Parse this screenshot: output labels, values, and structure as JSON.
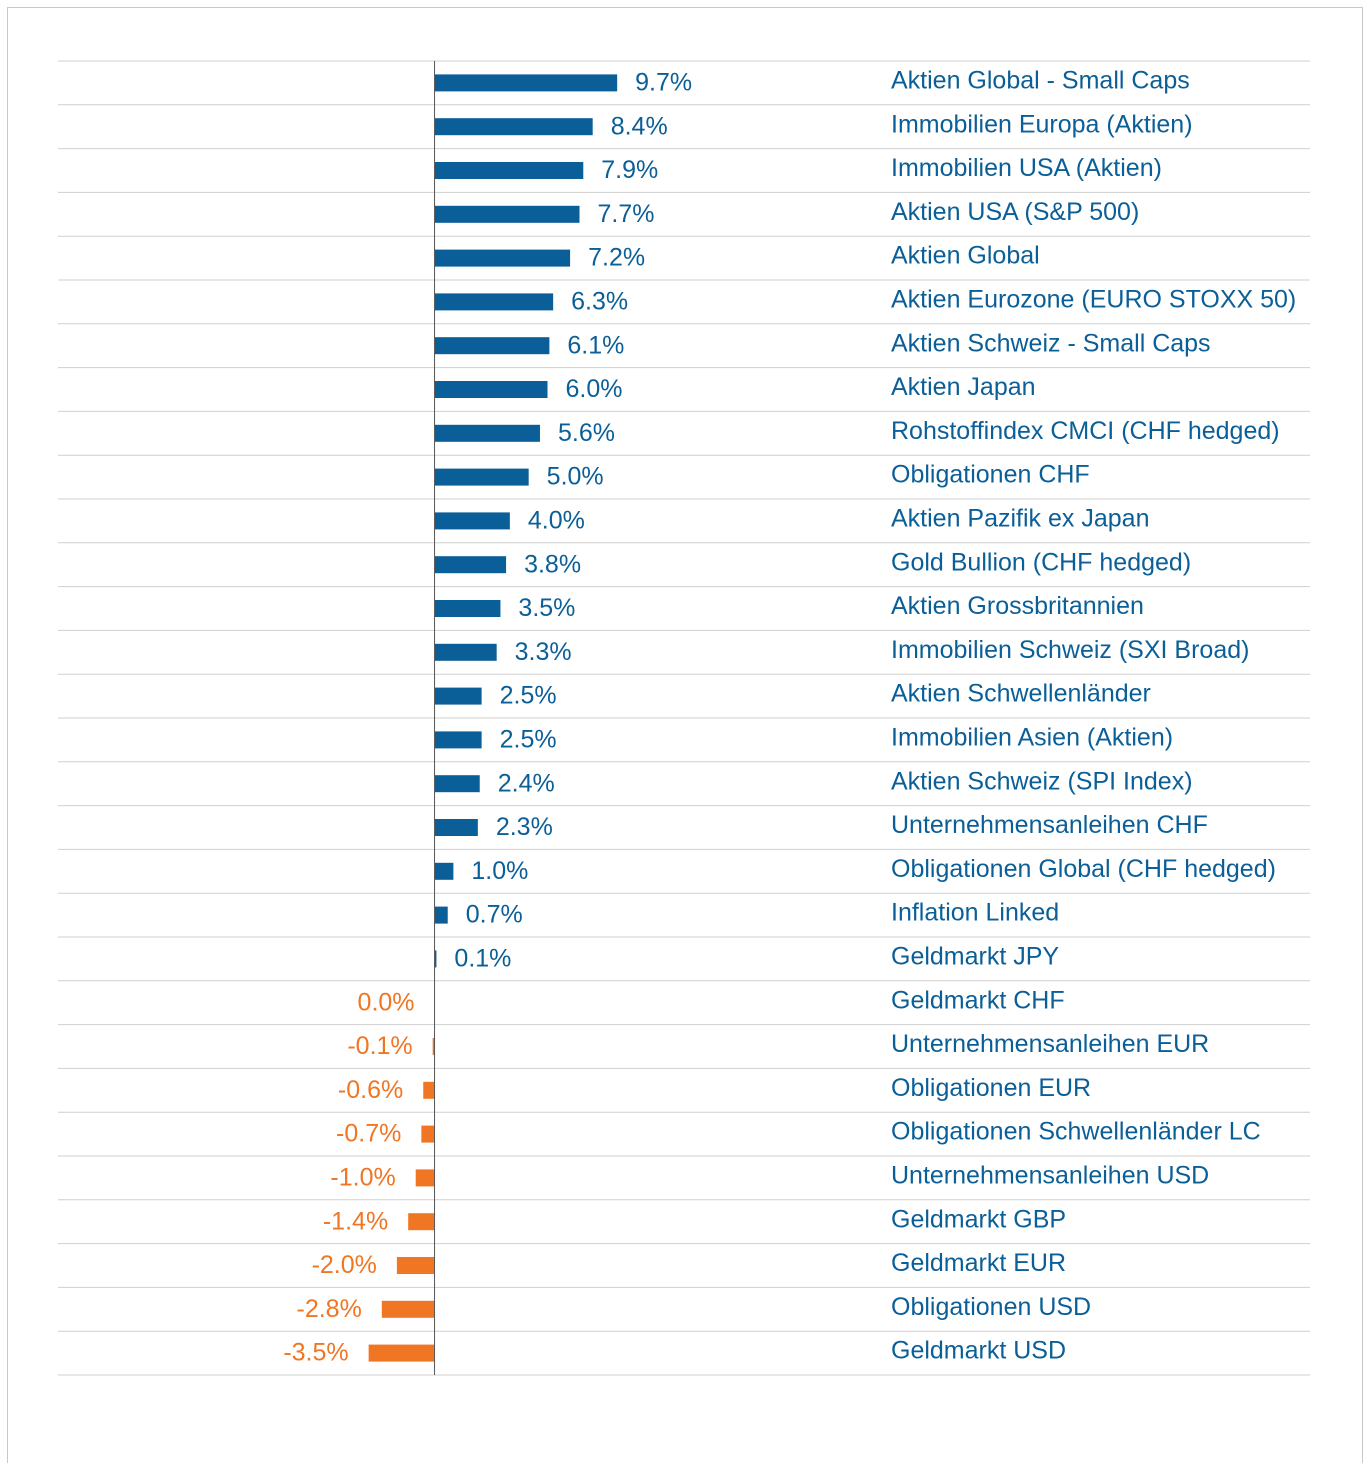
{
  "chart_data": {
    "type": "bar",
    "orientation": "horizontal",
    "categories": [
      "Aktien Global - Small Caps",
      "Immobilien Europa (Aktien)",
      "Immobilien USA (Aktien)",
      "Aktien USA (S&P 500)",
      "Aktien Global",
      "Aktien Eurozone (EURO STOXX 50)",
      "Aktien Schweiz - Small Caps",
      "Aktien Japan",
      "Rohstoffindex CMCI (CHF hedged)",
      "Obligationen CHF",
      "Aktien Pazifik ex Japan",
      "Gold Bullion (CHF hedged)",
      "Aktien Grossbritannien",
      "Immobilien Schweiz (SXI Broad)",
      "Aktien Schwellenländer",
      "Immobilien Asien (Aktien)",
      "Aktien Schweiz (SPI Index)",
      "Unternehmensanleihen CHF",
      "Obligationen Global (CHF hedged)",
      "Inflation Linked",
      "Geldmarkt JPY",
      "Geldmarkt CHF",
      "Unternehmensanleihen EUR",
      "Obligationen EUR",
      "Obligationen Schwellenländer LC",
      "Unternehmensanleihen USD",
      "Geldmarkt GBP",
      "Geldmarkt EUR",
      "Obligationen USD",
      "Geldmarkt USD"
    ],
    "values": [
      9.7,
      8.4,
      7.9,
      7.7,
      7.2,
      6.3,
      6.1,
      6.0,
      5.6,
      5.0,
      4.0,
      3.8,
      3.5,
      3.3,
      2.5,
      2.5,
      2.4,
      2.3,
      1.0,
      0.7,
      0.1,
      0.0,
      -0.1,
      -0.6,
      -0.7,
      -1.0,
      -1.4,
      -2.0,
      -2.8,
      -3.5
    ],
    "value_labels": [
      "9.7%",
      "8.4%",
      "7.9%",
      "7.7%",
      "7.2%",
      "6.3%",
      "6.1%",
      "6.0%",
      "5.6%",
      "5.0%",
      "4.0%",
      "3.8%",
      "3.5%",
      "3.3%",
      "2.5%",
      "2.5%",
      "2.4%",
      "2.3%",
      "1.0%",
      "0.7%",
      "0.1%",
      "0.0%",
      "-0.1%",
      "-0.6%",
      "-0.7%",
      "-1.0%",
      "-1.4%",
      "-2.0%",
      "-2.8%",
      "-3.5%"
    ],
    "color": "#0b5f98",
    "negative_color": "#f07624",
    "label_color": "#0b5f98",
    "xlim": [
      -20,
      46.5
    ]
  }
}
